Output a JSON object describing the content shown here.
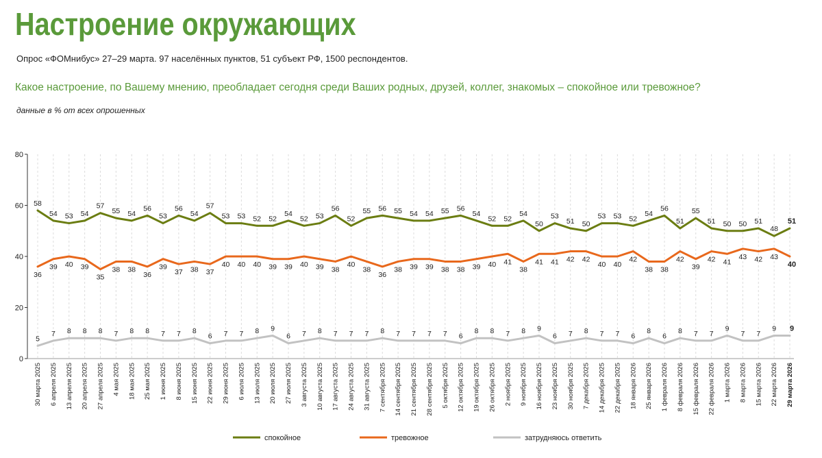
{
  "header": {
    "title": "Настроение окружающих",
    "subtitle": "Опрос «ФОМнибус» 27–29 марта. 97 населённых пунктов, 51 субъект РФ, 1500 респондентов.",
    "question": "Какое настроение, по Вашему мнению, преобладает сегодня среди Ваших родных, друзей, коллег, знакомых – спокойное или тревожное?",
    "note": "данные в % от всех опрошенных"
  },
  "colors": {
    "calm": "#6b7d12",
    "anxious": "#e8681c",
    "hard": "#c2c2c2",
    "title": "#5a9a3a"
  },
  "chart_data": {
    "type": "line",
    "ylim": [
      0,
      80
    ],
    "yticks": [
      0,
      20,
      40,
      60,
      80
    ],
    "grid": "dashed vertical",
    "legend_position": "bottom",
    "categories": [
      "30 марта 2025",
      "6 апреля 2025",
      "13 апреля 2025",
      "20 апреля 2025",
      "27 апреля 2025",
      "4 мая 2025",
      "18 мая 2025",
      "25 мая 2025",
      "1 июня 2025",
      "8 июня 2025",
      "15 июня 2025",
      "22 июня 2025",
      "29 июня 2025",
      "6 июля 2025",
      "13 июля 2025",
      "20 июля 2025",
      "27 июля 2025",
      "3 августа 2025",
      "10 августа 2025",
      "17 августа 2025",
      "24 августа 2025",
      "31 августа 2025",
      "7 сентября 2025",
      "14 сентября 2025",
      "21 сентября 2025",
      "28 сентября 2025",
      "5 октября 2025",
      "12 октября 2025",
      "19 октября 2025",
      "26 октября 2025",
      "2 ноября 2025",
      "9 ноября 2025",
      "16 ноября 2025",
      "23 ноября 2025",
      "30 ноября 2025",
      "7 декабря 2025",
      "14 декабря 2025",
      "22 декабря 2025",
      "18 января 2026",
      "25 января 2026",
      "1 февраля 2026",
      "8 февраля 2026",
      "15 февраля 2026",
      "22 февраля 2026",
      "1 марта 2026",
      "8 марта 2026",
      "15 марта 2026",
      "22 марта 2026",
      "29 марта 2026"
    ],
    "series": [
      {
        "name": "спокойное",
        "key": "calm",
        "label_pos": "above",
        "values": [
          58,
          54,
          53,
          54,
          57,
          55,
          54,
          56,
          53,
          56,
          54,
          57,
          53,
          53,
          52,
          52,
          54,
          52,
          53,
          56,
          52,
          55,
          56,
          55,
          54,
          54,
          55,
          56,
          54,
          52,
          52,
          54,
          50,
          53,
          51,
          50,
          53,
          53,
          52,
          54,
          56,
          51,
          55,
          51,
          50,
          50,
          51,
          48,
          51
        ]
      },
      {
        "name": "тревожное",
        "key": "anxious",
        "label_pos": "below",
        "values": [
          36,
          39,
          40,
          39,
          35,
          38,
          38,
          36,
          39,
          37,
          38,
          37,
          40,
          40,
          40,
          39,
          39,
          40,
          39,
          38,
          40,
          38,
          36,
          38,
          39,
          39,
          38,
          38,
          39,
          40,
          41,
          38,
          41,
          41,
          42,
          42,
          40,
          40,
          42,
          38,
          38,
          42,
          39,
          42,
          41,
          43,
          42,
          43,
          40
        ]
      },
      {
        "name": "затрудняюсь ответить",
        "key": "hard",
        "label_pos": "above",
        "values": [
          5,
          7,
          8,
          8,
          8,
          7,
          8,
          8,
          7,
          7,
          8,
          6,
          7,
          7,
          8,
          9,
          6,
          7,
          8,
          7,
          7,
          7,
          8,
          7,
          7,
          7,
          7,
          6,
          8,
          8,
          7,
          8,
          9,
          6,
          7,
          8,
          7,
          7,
          6,
          8,
          6,
          8,
          7,
          7,
          9,
          7,
          7,
          9,
          9
        ]
      }
    ]
  }
}
